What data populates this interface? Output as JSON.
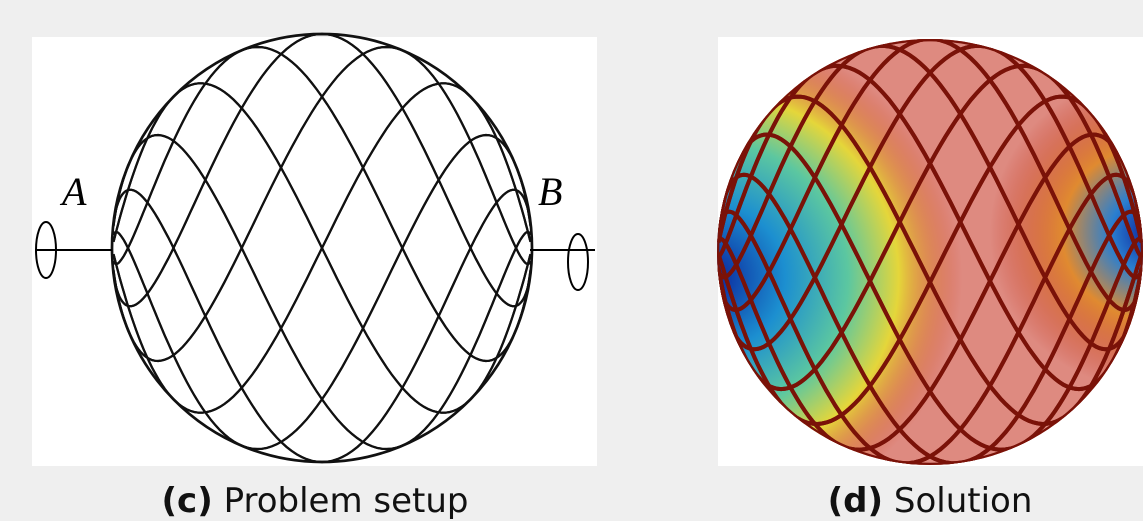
{
  "panels": [
    {
      "label": "(c)",
      "caption": "Problem setup",
      "annotations": [
        "A",
        "B"
      ]
    },
    {
      "label": "(d)",
      "caption": "Solution"
    }
  ]
}
